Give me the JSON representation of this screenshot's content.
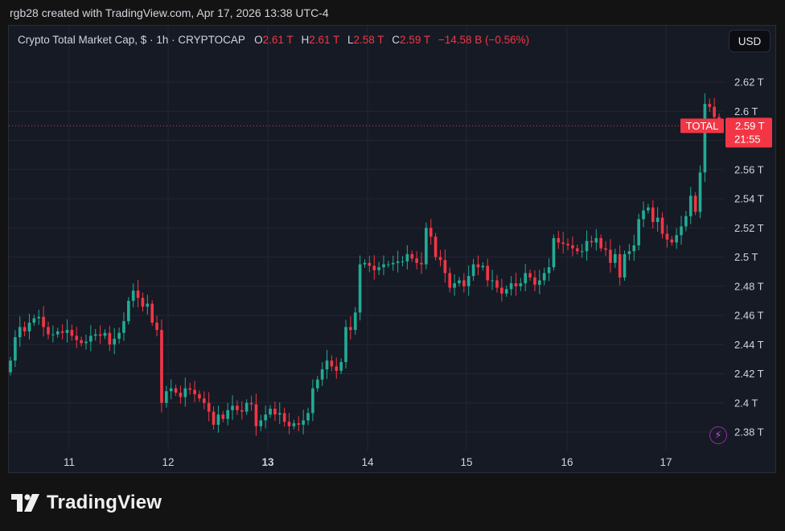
{
  "header": {
    "attribution": "rgb28 created with TradingView.com, Apr 17, 2026 13:38 UTC-4"
  },
  "legend": {
    "symbol": "Crypto Total Market Cap, $ · 1h · CRYPTOCAP",
    "open_label": "O",
    "open": "2.61 T",
    "high_label": "H",
    "high": "2.61 T",
    "low_label": "L",
    "low": "2.58 T",
    "close_label": "C",
    "close": "2.59 T",
    "change": "−14.58 B (−0.56%)"
  },
  "currency_button": "USD",
  "price_tag": {
    "symbol": "TOTAL",
    "price": "2.59 T",
    "countdown": "21:55"
  },
  "brand": {
    "name": "TradingView"
  },
  "colors": {
    "up": "#22ab94",
    "down": "#f23645",
    "grid": "#232734",
    "axis_text": "#d1d4dc"
  },
  "chart_data": {
    "type": "candlestick",
    "y_unit": "T USD",
    "ylim": [
      2.37,
      2.625
    ],
    "y_ticks": [
      2.38,
      2.4,
      2.42,
      2.44,
      2.46,
      2.48,
      2.5,
      2.52,
      2.54,
      2.56,
      2.58,
      2.6,
      2.62
    ],
    "y_tick_labels": [
      "2.38 T",
      "2.4 T",
      "2.42 T",
      "2.44 T",
      "2.46 T",
      "2.48 T",
      "2.5 T",
      "2.52 T",
      "2.54 T",
      "2.56 T",
      "2.58 T",
      "2.6 T",
      "2.62 T"
    ],
    "x_ticks": [
      "11",
      "12",
      "13",
      "14",
      "15",
      "16",
      "17"
    ],
    "x_tick_bold": "13",
    "last_price": 2.59,
    "closes": [
      2.429,
      2.445,
      2.452,
      2.449,
      2.455,
      2.458,
      2.459,
      2.452,
      2.447,
      2.447,
      2.449,
      2.448,
      2.45,
      2.446,
      2.443,
      2.441,
      2.442,
      2.446,
      2.447,
      2.446,
      2.448,
      2.44,
      2.444,
      2.448,
      2.456,
      2.47,
      2.477,
      2.472,
      2.466,
      2.468,
      2.455,
      2.45,
      2.4,
      2.408,
      2.41,
      2.407,
      2.404,
      2.41,
      2.409,
      2.406,
      2.403,
      2.4,
      2.394,
      2.385,
      2.392,
      2.389,
      2.395,
      2.398,
      2.395,
      2.394,
      2.4,
      2.399,
      2.384,
      2.388,
      2.392,
      2.396,
      2.392,
      2.393,
      2.387,
      2.384,
      2.386,
      2.385,
      2.388,
      2.393,
      2.41,
      2.416,
      2.423,
      2.429,
      2.425,
      2.422,
      2.428,
      2.452,
      2.45,
      2.462,
      2.495,
      2.496,
      2.494,
      2.491,
      2.493,
      2.495,
      2.495,
      2.496,
      2.497,
      2.497,
      2.502,
      2.499,
      2.496,
      2.495,
      2.52,
      2.514,
      2.5,
      2.498,
      2.489,
      2.479,
      2.482,
      2.484,
      2.48,
      2.487,
      2.495,
      2.493,
      2.494,
      2.484,
      2.484,
      2.479,
      2.475,
      2.478,
      2.482,
      2.48,
      2.482,
      2.489,
      2.486,
      2.481,
      2.484,
      2.489,
      2.493,
      2.513,
      2.51,
      2.509,
      2.508,
      2.506,
      2.504,
      2.504,
      2.511,
      2.51,
      2.513,
      2.506,
      2.505,
      2.496,
      2.502,
      2.486,
      2.502,
      2.504,
      2.508,
      2.526,
      2.532,
      2.534,
      2.524,
      2.527,
      2.516,
      2.512,
      2.51,
      2.515,
      2.521,
      2.528,
      2.542,
      2.531,
      2.558,
      2.605,
      2.603,
      2.596,
      2.59
    ]
  }
}
